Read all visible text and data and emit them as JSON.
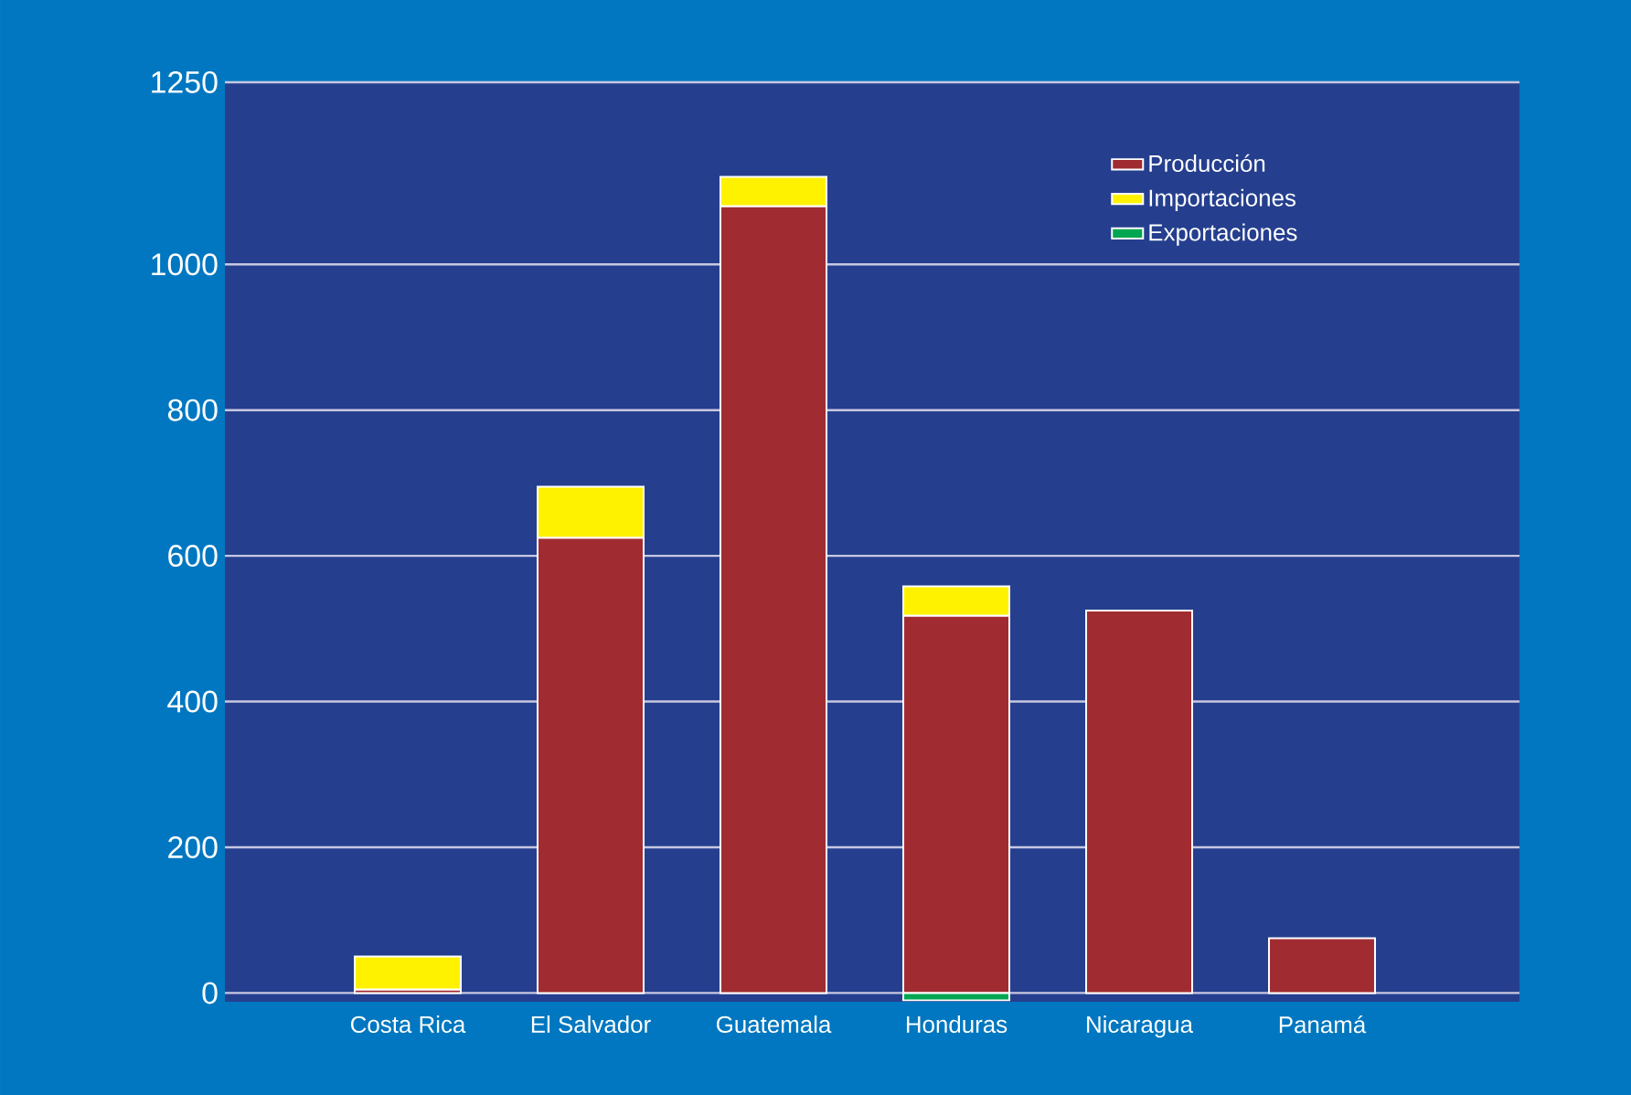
{
  "chart_data": {
    "type": "bar",
    "stacked": true,
    "categories": [
      "Costa Rica",
      "El Salvador",
      "Guatemala",
      "Honduras",
      "Nicaragua",
      "Panamá"
    ],
    "series": [
      {
        "name": "Producción",
        "color": "#a02c32",
        "values": [
          5,
          625,
          1080,
          518,
          525,
          75
        ]
      },
      {
        "name": "Importaciones",
        "color": "#fff200",
        "values": [
          45,
          70,
          40,
          40,
          null,
          null
        ]
      },
      {
        "name": "Exportaciones",
        "color": "#00a651",
        "values": [
          null,
          null,
          null,
          -10,
          null,
          null
        ]
      }
    ],
    "ylim": [
      -12,
      1250
    ],
    "yticks": [
      0,
      200,
      400,
      600,
      800,
      1000,
      1250
    ],
    "grid": "y",
    "legend": "top right"
  }
}
